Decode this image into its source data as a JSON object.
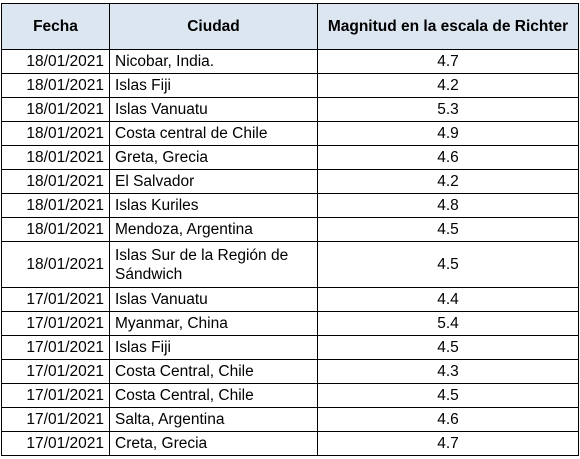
{
  "table": {
    "headers": {
      "date": "Fecha",
      "city": "Ciudad",
      "magnitude": "Magnitud en la escala de Richter"
    },
    "header_background": "#dce6f1",
    "rows": [
      {
        "date": "18/01/2021",
        "city": "Nicobar, India.",
        "magnitude": "4.7"
      },
      {
        "date": "18/01/2021",
        "city": "Islas Fiji",
        "magnitude": "4.2"
      },
      {
        "date": "18/01/2021",
        "city": "Islas Vanuatu",
        "magnitude": "5.3"
      },
      {
        "date": "18/01/2021",
        "city": "Costa central de Chile",
        "magnitude": "4.9"
      },
      {
        "date": "18/01/2021",
        "city": "Greta, Grecia",
        "magnitude": "4.6"
      },
      {
        "date": "18/01/2021",
        "city": "El Salvador",
        "magnitude": "4.2"
      },
      {
        "date": "18/01/2021",
        "city": "Islas Kuriles",
        "magnitude": "4.8"
      },
      {
        "date": "18/01/2021",
        "city": "Mendoza, Argentina",
        "magnitude": "4.5"
      },
      {
        "date": "18/01/2021",
        "city": "Islas Sur de la Región de Sándwich",
        "magnitude": "4.5"
      },
      {
        "date": "17/01/2021",
        "city": "Islas Vanuatu",
        "magnitude": "4.4"
      },
      {
        "date": "17/01/2021",
        "city": "Myanmar, China",
        "magnitude": "5.4"
      },
      {
        "date": "17/01/2021",
        "city": "Islas Fiji",
        "magnitude": "4.5"
      },
      {
        "date": "17/01/2021",
        "city": "Costa Central, Chile",
        "magnitude": "4.3"
      },
      {
        "date": "17/01/2021",
        "city": "Costa Central, Chile",
        "magnitude": "4.5"
      },
      {
        "date": "17/01/2021",
        "city": "Salta, Argentina",
        "magnitude": "4.6"
      },
      {
        "date": "17/01/2021",
        "city": "Creta, Grecia",
        "magnitude": "4.7"
      }
    ]
  }
}
